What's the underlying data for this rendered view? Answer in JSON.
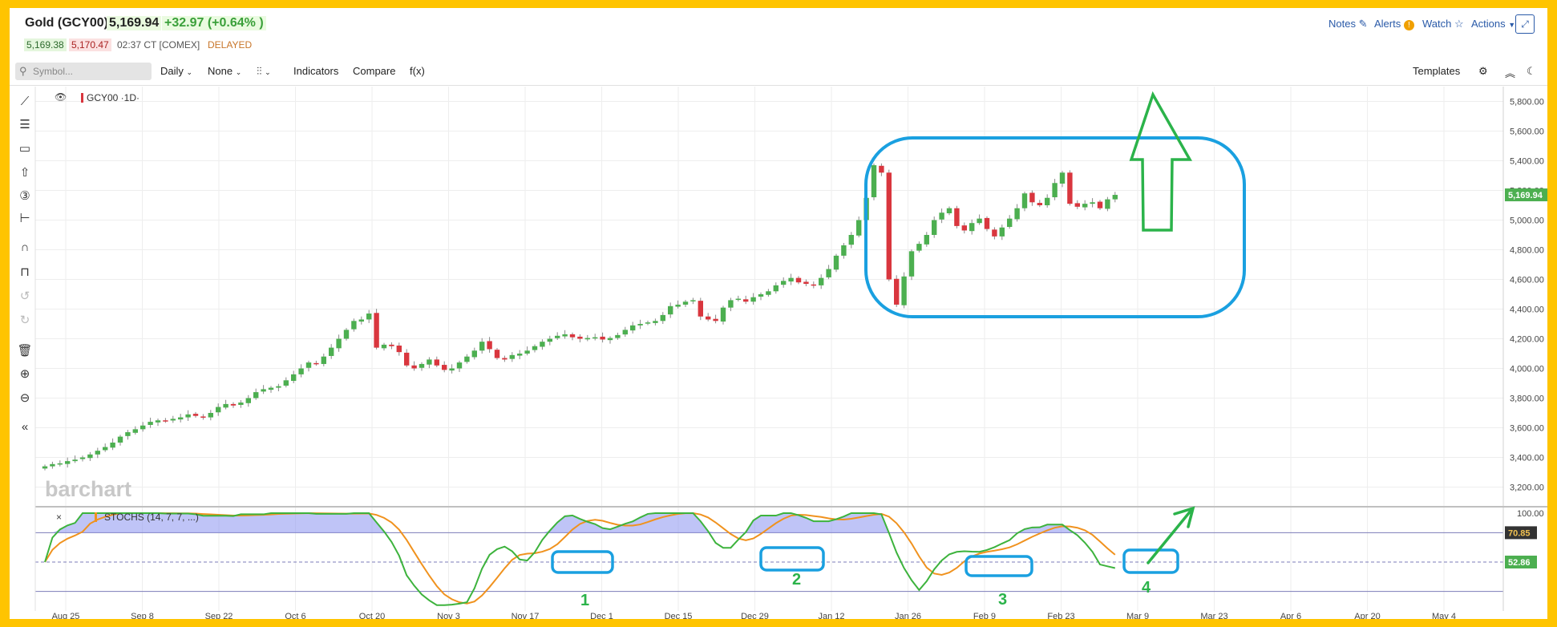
{
  "header": {
    "title": "Gold (GCY00)",
    "last": "5,169.94",
    "change": "+32.97 (+0.64% )",
    "bid": "5,169.38",
    "ask": "5,170.47",
    "time": "02:37 CT",
    "exchange": "[COMEX]",
    "delayed": "DELAYED"
  },
  "top_actions": {
    "notes": "Notes",
    "alerts": "Alerts",
    "watch": "Watch",
    "actions": "Actions"
  },
  "toolbar": {
    "search_placeholder": "Symbol...",
    "interval": "Daily",
    "compare_none": "None",
    "chart_style": "¤",
    "indicators": "Indicators",
    "compare": "Compare",
    "fx": "f(x)",
    "templates": "Templates"
  },
  "price_pane": {
    "legend": "GCY00 ·1D·",
    "watermark": "barchart",
    "price_tag": "5,169.94"
  },
  "stoch_pane": {
    "legend": "STOCHS (14, 7, 7, ...)",
    "tag_k": "70.85",
    "tag_d": "52.86"
  },
  "annotations": [
    "1",
    "2",
    "3",
    "4"
  ],
  "colors": {
    "up": "#4caf50",
    "down": "#d9363e",
    "k_line": "#3db33d",
    "d_line": "#f0921e",
    "fill": "#8b93f0",
    "markup": "#1aa0e0",
    "arrow": "#2bb34a"
  },
  "chart_data": {
    "type": "candlestick",
    "ylim": [
      3100,
      5900
    ],
    "yticks": [
      "5,800.00",
      "5,600.00",
      "5,400.00",
      "5,200.00",
      "5,000.00",
      "4,800.00",
      "4,600.00",
      "4,400.00",
      "4,200.00",
      "4,000.00",
      "3,800.00",
      "3,600.00",
      "3,400.00",
      "3,200.00"
    ],
    "xticks": [
      "Aug 25",
      "Sep 8",
      "Sep 22",
      "Oct 6",
      "Oct 20",
      "Nov 3",
      "Nov 17",
      "Dec 1",
      "Dec 15",
      "Dec 29",
      "Jan 12",
      "Jan 26",
      "Feb 9",
      "Feb 23",
      "Mar 9",
      "Mar 23",
      "Apr 6",
      "Apr 20",
      "May 4"
    ],
    "closes": [
      3340,
      3355,
      3360,
      3375,
      3385,
      3400,
      3420,
      3445,
      3470,
      3500,
      3540,
      3570,
      3590,
      3615,
      3640,
      3650,
      3645,
      3660,
      3670,
      3690,
      3680,
      3670,
      3700,
      3740,
      3760,
      3750,
      3770,
      3800,
      3840,
      3860,
      3870,
      3880,
      3920,
      3960,
      4000,
      4040,
      4030,
      4080,
      4140,
      4200,
      4260,
      4320,
      4330,
      4370,
      4140,
      4160,
      4150,
      4110,
      4020,
      4000,
      4030,
      4060,
      4020,
      3990,
      4000,
      4040,
      4080,
      4120,
      4180,
      4130,
      4070,
      4060,
      4090,
      4100,
      4120,
      4150,
      4180,
      4200,
      4220,
      4230,
      4210,
      4200,
      4205,
      4210,
      4195,
      4205,
      4225,
      4260,
      4290,
      4300,
      4310,
      4320,
      4360,
      4420,
      4430,
      4450,
      4460,
      4350,
      4330,
      4320,
      4410,
      4460,
      4470,
      4450,
      4480,
      4500,
      4520,
      4560,
      4590,
      4610,
      4580,
      4570,
      4560,
      4610,
      4670,
      4760,
      4830,
      4900,
      5000,
      5150,
      5370,
      5320,
      4600,
      4430,
      4620,
      4790,
      4840,
      4900,
      5000,
      5050,
      5080,
      4960,
      4930,
      4980,
      5010,
      4940,
      4890,
      4950,
      5010,
      5080,
      5180,
      5120,
      5100,
      5150,
      5250,
      5320,
      5110,
      5090,
      5110,
      5120,
      5080,
      5140,
      5170
    ],
    "stoch_ylim": [
      0,
      100
    ],
    "stoch_ticks": [
      "100.00"
    ],
    "stoch_k_last": 70.85,
    "stoch_d_last": 52.86
  }
}
